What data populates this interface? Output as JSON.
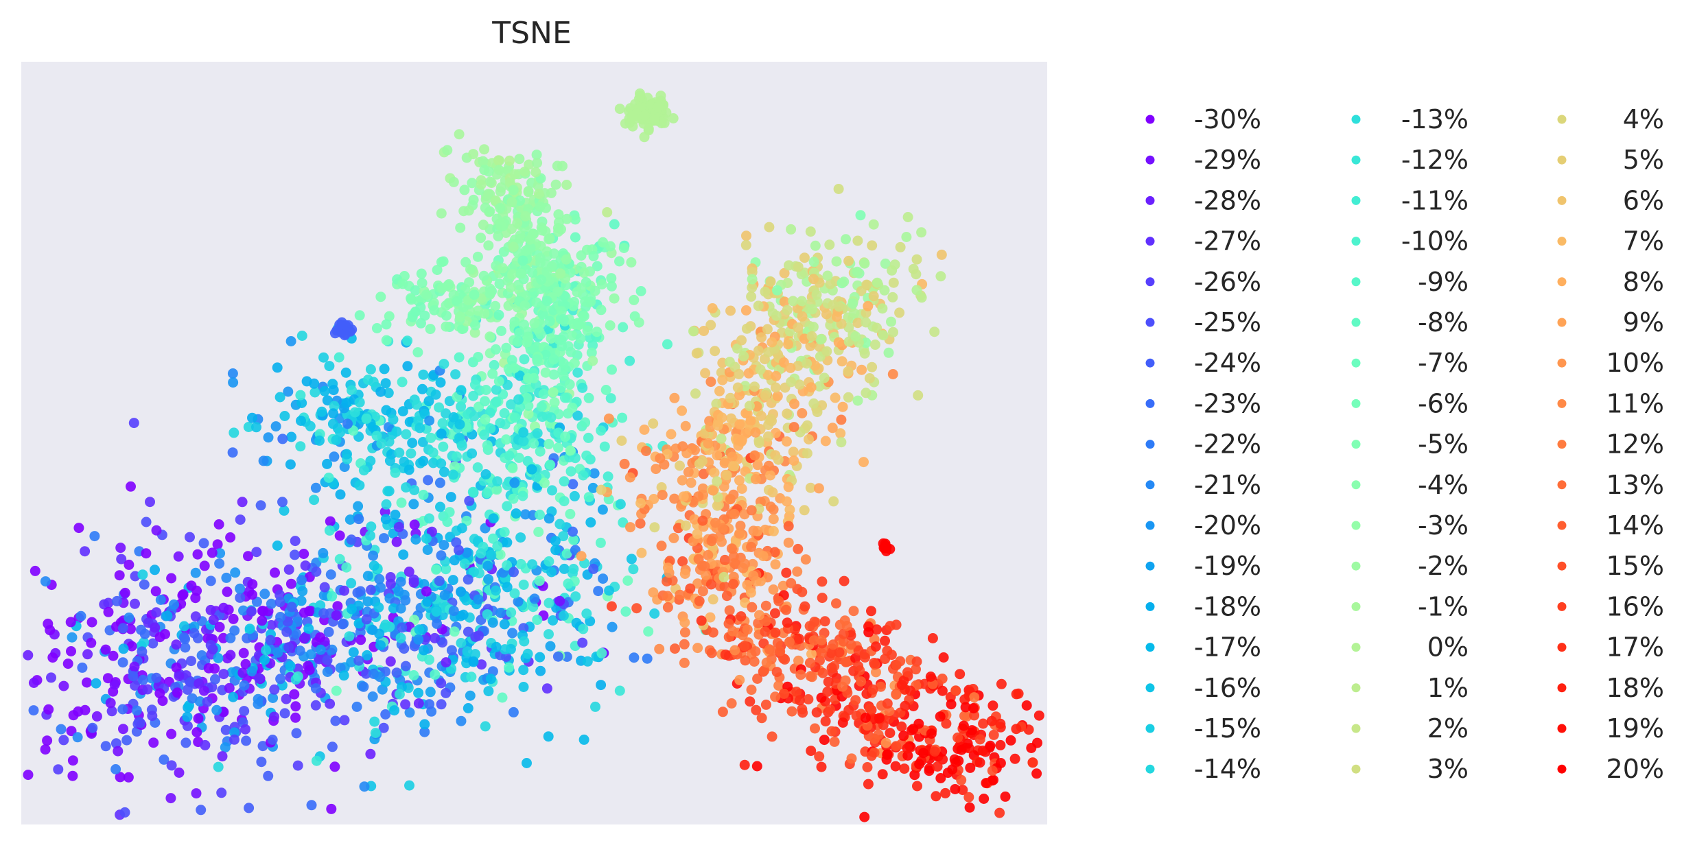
{
  "chart_data": {
    "type": "scatter",
    "title": "TSNE",
    "xlabel": "",
    "ylabel": "",
    "axes_visible": false,
    "grid": false,
    "background": "#eaeaf2",
    "colormap": "rainbow",
    "legend": {
      "placement": "right",
      "columns": 3,
      "entries": [
        "-30%",
        "-29%",
        "-28%",
        "-27%",
        "-26%",
        "-25%",
        "-24%",
        "-23%",
        "-22%",
        "-21%",
        "-20%",
        "-19%",
        "-18%",
        "-17%",
        "-16%",
        "-15%",
        "-14%",
        "-13%",
        "-12%",
        "-11%",
        "-10%",
        "-9%",
        "-8%",
        "-7%",
        "-6%",
        "-5%",
        "-4%",
        "-3%",
        "-2%",
        "-1%",
        "0%",
        "1%",
        "2%",
        "3%",
        "4%",
        "5%",
        "6%",
        "7%",
        "8%",
        "9%",
        "10%",
        "11%",
        "12%",
        "13%",
        "14%",
        "15%",
        "16%",
        "17%",
        "18%",
        "19%",
        "20%"
      ]
    },
    "clusters": [
      {
        "label_range": [
          "-30%",
          "-14%"
        ],
        "center": [
          -32,
          -18
        ],
        "description_color": "purple-blue"
      },
      {
        "label_range": [
          "-13%",
          "-3%"
        ],
        "center": [
          -14,
          8
        ],
        "description_color": "cyan-mint"
      },
      {
        "label_range": [
          "-2%",
          "0%"
        ],
        "center": [
          -8,
          34
        ],
        "description_color": "light-green"
      },
      {
        "label_range": [
          "1%",
          "12%"
        ],
        "center": [
          18,
          8
        ],
        "description_color": "yellow-orange"
      },
      {
        "label_range": [
          "13%",
          "20%"
        ],
        "center": [
          26,
          -24
        ],
        "description_color": "orange-red"
      }
    ]
  }
}
